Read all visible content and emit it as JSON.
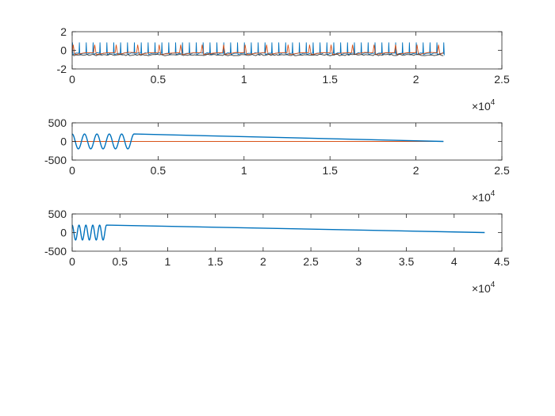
{
  "colors": {
    "series1": "#0072BD",
    "series2": "#D95319",
    "series3": "#303030",
    "axis": "#262626",
    "background": "#ffffff"
  },
  "chart_data": [
    {
      "type": "line",
      "title": "",
      "xlabel": "",
      "ylabel": "",
      "xlim": [
        0,
        25000
      ],
      "ylim": [
        -2,
        2
      ],
      "xticks": [
        0,
        5000,
        10000,
        15000,
        20000,
        25000
      ],
      "xtick_labels": [
        "0",
        "0.5",
        "1",
        "1.5",
        "2",
        "2.5"
      ],
      "yticks": [
        -2,
        0,
        2
      ],
      "ytick_labels": [
        "-2",
        "0",
        "2"
      ],
      "x_exponent_base": "×10",
      "x_exponent_power": "4",
      "grid": false,
      "legend": "none",
      "series": [
        {
          "kind": "spike-train",
          "x_start": 0,
          "x_end": 21600,
          "baseline": -0.3,
          "peak": 0.85,
          "trough": -0.45,
          "period": 400,
          "color": "#0072BD"
        },
        {
          "kind": "spike-train",
          "x_start": 0,
          "x_end": 21600,
          "baseline": -0.25,
          "peak": 0.6,
          "trough": -0.45,
          "period": 1250,
          "color": "#D95319"
        },
        {
          "kind": "flat-noise",
          "x_start": 0,
          "x_end": 21600,
          "level": -0.5,
          "amplitude": 0.08,
          "color": "#303030"
        }
      ]
    },
    {
      "type": "line",
      "title": "",
      "xlabel": "",
      "ylabel": "",
      "xlim": [
        0,
        25000
      ],
      "ylim": [
        -500,
        500
      ],
      "xticks": [
        0,
        5000,
        10000,
        15000,
        20000,
        25000
      ],
      "xtick_labels": [
        "0",
        "0.5",
        "1",
        "1.5",
        "2",
        "2.5"
      ],
      "yticks": [
        -500,
        0,
        500
      ],
      "ytick_labels": [
        "-500",
        "0",
        "500"
      ],
      "x_exponent_base": "×10",
      "x_exponent_power": "4",
      "grid": false,
      "legend": "none",
      "series": [
        {
          "kind": "flat",
          "x_start": 0,
          "x_end": 21600,
          "level": 0,
          "color": "#D95319"
        },
        {
          "kind": "sine",
          "x_start": 0,
          "x_end": 3600,
          "amplitude": 200,
          "cycles": 5,
          "then_flat_to": 21600,
          "color": "#0072BD"
        }
      ]
    },
    {
      "type": "line",
      "title": "",
      "xlabel": "",
      "ylabel": "",
      "xlim": [
        0,
        45000
      ],
      "ylim": [
        -500,
        500
      ],
      "xticks": [
        0,
        5000,
        10000,
        15000,
        20000,
        25000,
        30000,
        35000,
        40000,
        45000
      ],
      "xtick_labels": [
        "0",
        "0.5",
        "1",
        "1.5",
        "2",
        "2.5",
        "3",
        "3.5",
        "4",
        "4.5"
      ],
      "yticks": [
        -500,
        0,
        500
      ],
      "ytick_labels": [
        "-500",
        "0",
        "500"
      ],
      "x_exponent_base": "×10",
      "x_exponent_power": "4",
      "grid": false,
      "legend": "none",
      "series": [
        {
          "kind": "sine",
          "x_start": 0,
          "x_end": 3600,
          "amplitude": 200,
          "cycles": 5,
          "then_flat_to": 43200,
          "color": "#0072BD"
        }
      ]
    }
  ]
}
